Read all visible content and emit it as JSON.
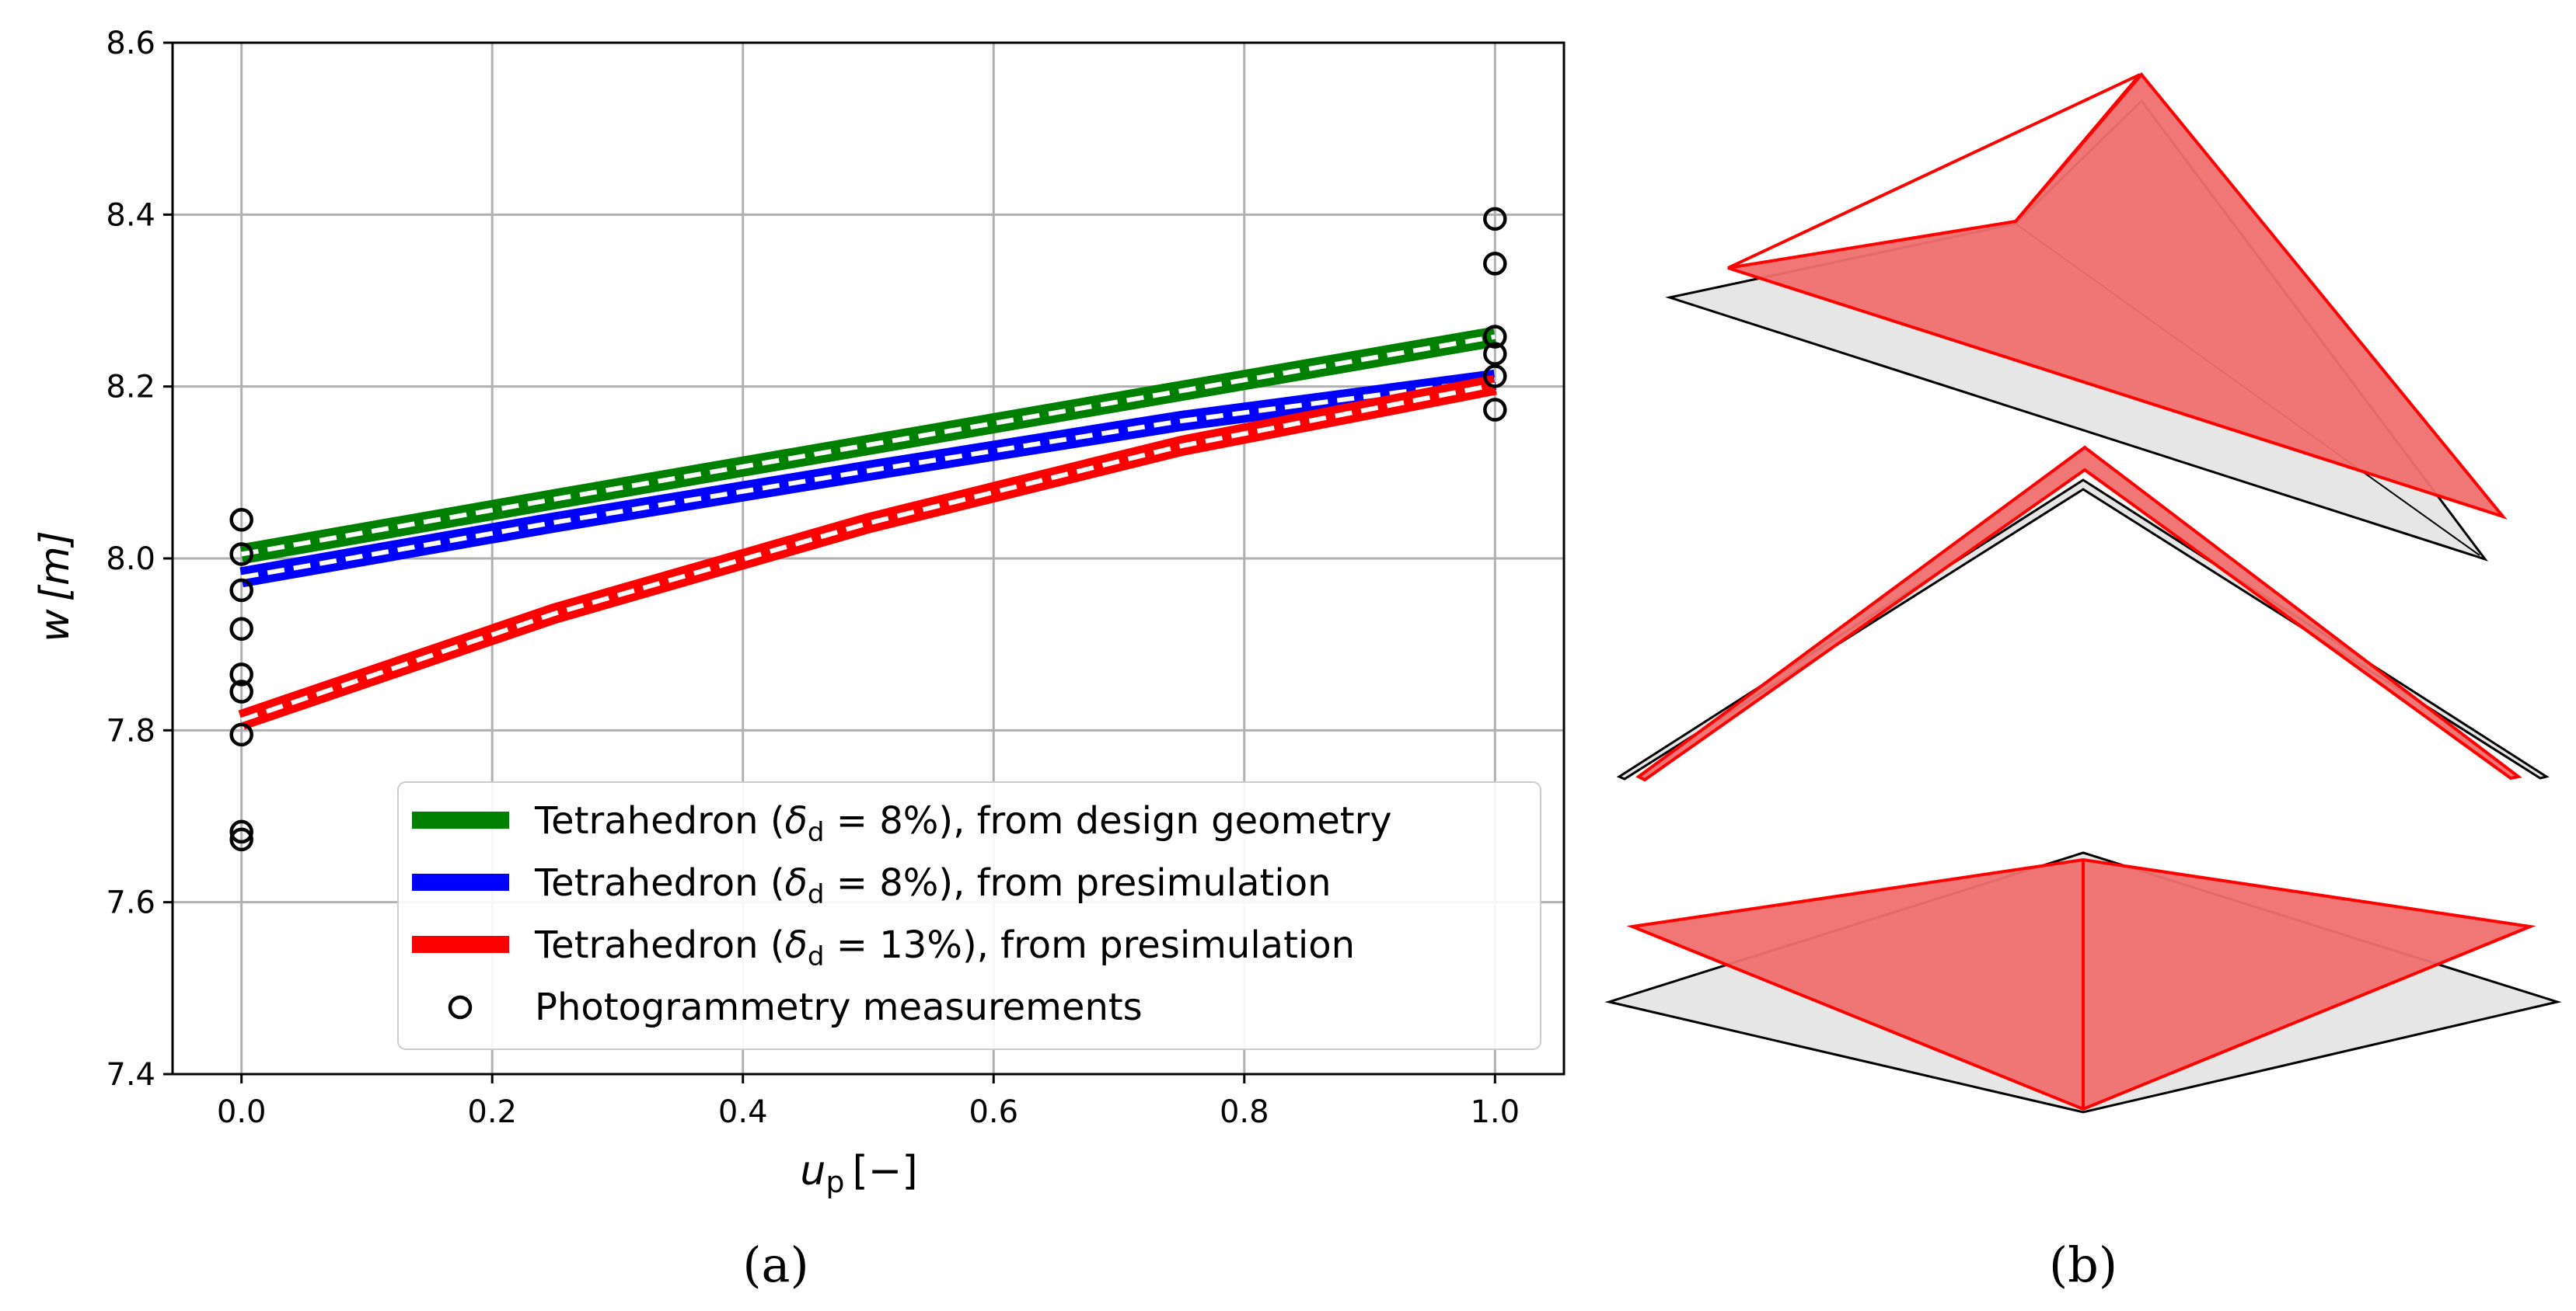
{
  "chart_data": [
    {
      "panel": "(a)",
      "type": "line",
      "xlabel_main": "u",
      "xlabel_sub": "p",
      "xlabel_unit": "[−]",
      "ylabel_main": "w",
      "ylabel_unit": "[m]",
      "xlim": [
        -0.055,
        1.055
      ],
      "ylim": [
        7.4,
        8.6
      ],
      "xticks": [
        "0.0",
        "0.2",
        "0.4",
        "0.6",
        "0.8",
        "1.0"
      ],
      "yticks": [
        "7.4",
        "7.6",
        "7.8",
        "8.0",
        "8.2",
        "8.4",
        "8.6"
      ],
      "grid": true,
      "legend_position": "lower-right",
      "series": [
        {
          "name_prefix": "Tetrahedron (",
          "delta_symbol": "δ",
          "delta_sub": "d",
          "name_suffix": " = 8%), from design geometry",
          "color": "#008000",
          "x": [
            0.0,
            0.25,
            0.5,
            0.75,
            1.0
          ],
          "y": [
            8.005,
            8.069,
            8.132,
            8.195,
            8.258
          ]
        },
        {
          "name_prefix": "Tetrahedron (",
          "delta_symbol": "δ",
          "delta_sub": "d",
          "name_suffix": " = 8%), from presimulation",
          "color": "#0000ff",
          "x": [
            0.0,
            0.25,
            0.5,
            0.75,
            1.0
          ],
          "y": [
            7.978,
            8.042,
            8.102,
            8.16,
            8.208
          ]
        },
        {
          "name_prefix": "Tetrahedron (",
          "delta_symbol": "δ",
          "delta_sub": "d",
          "name_suffix": " = 13%), from presimulation",
          "color": "#ff0000",
          "x": [
            0.0,
            0.25,
            0.5,
            0.75,
            1.0
          ],
          "y": [
            7.812,
            7.936,
            8.041,
            8.131,
            8.202
          ]
        }
      ],
      "scatter": {
        "name": "Photogrammetry measurements",
        "color": "#000000",
        "points": [
          [
            0.0,
            8.045
          ],
          [
            0.0,
            8.005
          ],
          [
            0.0,
            7.963
          ],
          [
            0.0,
            7.918
          ],
          [
            0.0,
            7.865
          ],
          [
            0.0,
            7.845
          ],
          [
            0.0,
            7.795
          ],
          [
            0.0,
            7.682
          ],
          [
            0.0,
            7.673
          ],
          [
            1.0,
            8.395
          ],
          [
            1.0,
            8.343
          ],
          [
            1.0,
            8.258
          ],
          [
            1.0,
            8.238
          ],
          [
            1.0,
            8.212
          ],
          [
            1.0,
            8.173
          ]
        ]
      }
    },
    {
      "panel": "(b)",
      "type": "other",
      "description_label": "3D tetrahedron shapes: reference (grey) and deformed (red)"
    }
  ],
  "colors": {
    "grid": "#b0b0b0",
    "reference_fill": "#e6e6e6",
    "deformed_fill": "#f07070",
    "deformed_edge": "#ff0000"
  }
}
